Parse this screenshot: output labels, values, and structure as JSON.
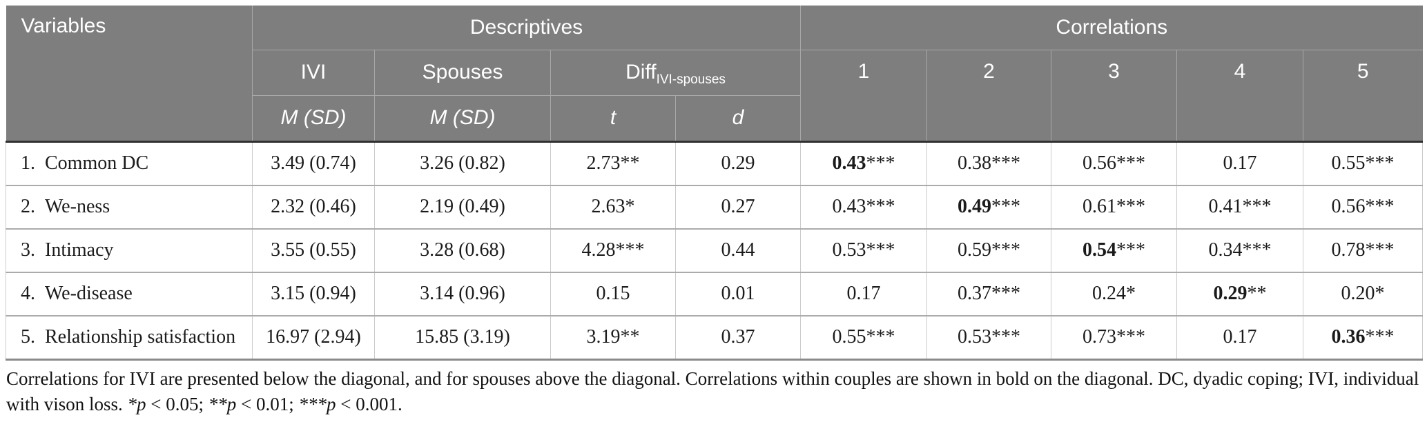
{
  "colors": {
    "header_bg": "#7e7e7e",
    "header_text": "#ffffff",
    "body_text": "#1b1b1b"
  },
  "table": {
    "header": {
      "variables": "Variables",
      "descriptives": "Descriptives",
      "correlations": "Correlations",
      "ivi": "IVI",
      "spouses": "Spouses",
      "diff_base": "Diff",
      "diff_subscript": "IVI-spouses",
      "m_sd_ivi": "M (SD)",
      "m_sd_spouses": "M (SD)",
      "t_label": "t",
      "d_label": "d",
      "corr_cols": [
        "1",
        "2",
        "3",
        "4",
        "5"
      ]
    },
    "rows": [
      {
        "label": "1. Common DC",
        "ivi_msd": "3.49 (0.74)",
        "spouses_msd": "3.26 (0.82)",
        "t": "2.73**",
        "d": "0.29",
        "corr": [
          {
            "value": "0.43",
            "stars": "***",
            "bold": true
          },
          {
            "value": "0.38",
            "stars": "***",
            "bold": false
          },
          {
            "value": "0.56",
            "stars": "***",
            "bold": false
          },
          {
            "value": "0.17",
            "stars": "",
            "bold": false
          },
          {
            "value": "0.55",
            "stars": "***",
            "bold": false
          }
        ]
      },
      {
        "label": "2. We-ness",
        "ivi_msd": "2.32 (0.46)",
        "spouses_msd": "2.19 (0.49)",
        "t": "2.63*",
        "d": "0.27",
        "corr": [
          {
            "value": "0.43",
            "stars": "***",
            "bold": false
          },
          {
            "value": "0.49",
            "stars": "***",
            "bold": true
          },
          {
            "value": "0.61",
            "stars": "***",
            "bold": false
          },
          {
            "value": "0.41",
            "stars": "***",
            "bold": false
          },
          {
            "value": "0.56",
            "stars": "***",
            "bold": false
          }
        ]
      },
      {
        "label": "3. Intimacy",
        "ivi_msd": "3.55 (0.55)",
        "spouses_msd": "3.28 (0.68)",
        "t": "4.28***",
        "d": "0.44",
        "corr": [
          {
            "value": "0.53",
            "stars": "***",
            "bold": false
          },
          {
            "value": "0.59",
            "stars": "***",
            "bold": false
          },
          {
            "value": "0.54",
            "stars": "***",
            "bold": true
          },
          {
            "value": "0.34",
            "stars": "***",
            "bold": false
          },
          {
            "value": "0.78",
            "stars": "***",
            "bold": false
          }
        ]
      },
      {
        "label": "4. We-disease",
        "ivi_msd": "3.15 (0.94)",
        "spouses_msd": "3.14 (0.96)",
        "t": "0.15",
        "d": "0.01",
        "corr": [
          {
            "value": "0.17",
            "stars": "",
            "bold": false
          },
          {
            "value": "0.37",
            "stars": "***",
            "bold": false
          },
          {
            "value": "0.24",
            "stars": "*",
            "bold": false
          },
          {
            "value": "0.29",
            "stars": "**",
            "bold": true
          },
          {
            "value": "0.20",
            "stars": "*",
            "bold": false
          }
        ]
      },
      {
        "label": "5. Relationship satisfaction",
        "ivi_msd": "16.97 (2.94)",
        "spouses_msd": "15.85 (3.19)",
        "t": "3.19**",
        "d": "0.37",
        "corr": [
          {
            "value": "0.55",
            "stars": "***",
            "bold": false
          },
          {
            "value": "0.53",
            "stars": "***",
            "bold": false
          },
          {
            "value": "0.73",
            "stars": "***",
            "bold": false
          },
          {
            "value": "0.17",
            "stars": "",
            "bold": false
          },
          {
            "value": "0.36",
            "stars": "***",
            "bold": true
          }
        ]
      }
    ]
  },
  "footnote": {
    "segments": [
      {
        "text": "Correlations for IVI are presented below the diagonal, and for spouses above the diagonal. Correlations within couples are shown in bold on the diagonal. DC, dyadic coping; IVI, individual with vison loss. ",
        "italic": false
      },
      {
        "text": "*p",
        "italic": true
      },
      {
        "text": " < 0.05; ",
        "italic": false
      },
      {
        "text": "**p",
        "italic": true
      },
      {
        "text": " < 0.01; ",
        "italic": false
      },
      {
        "text": "***p",
        "italic": true
      },
      {
        "text": " < 0.001.",
        "italic": false
      }
    ]
  }
}
